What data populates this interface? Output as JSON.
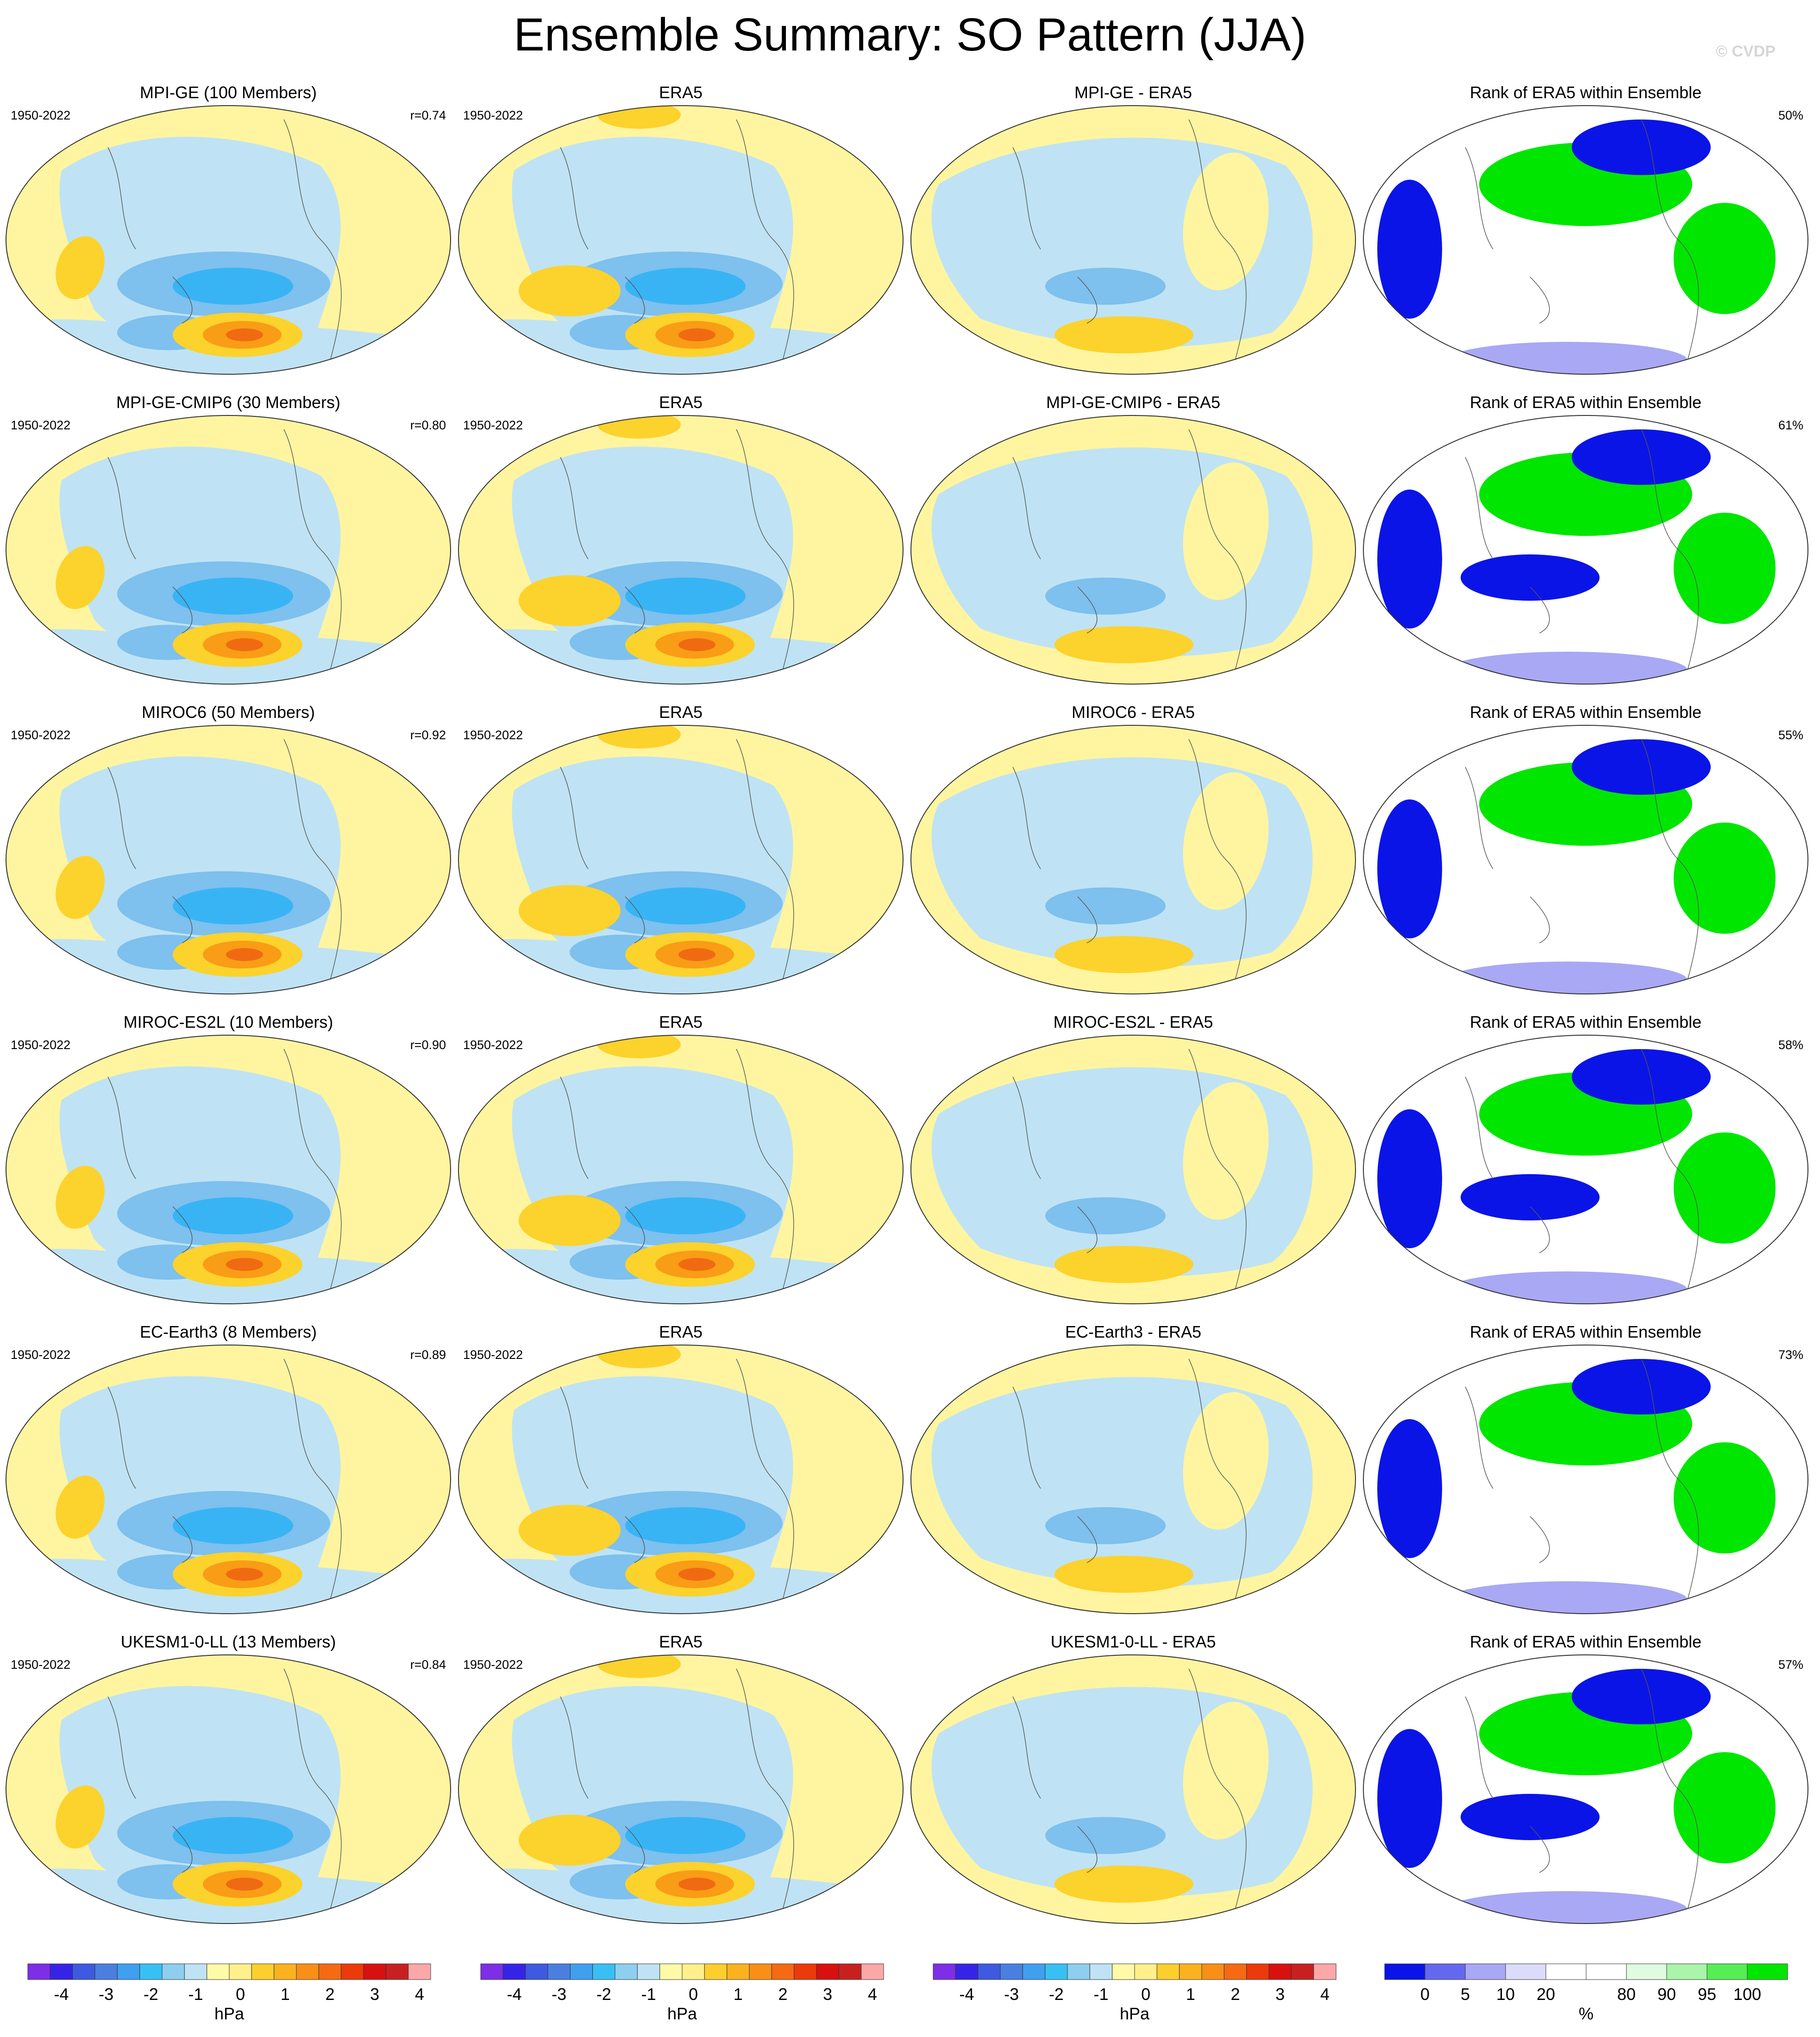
{
  "title": "Ensemble Summary: SO Pattern (JJA)",
  "watermark": "© CVDP",
  "chart_data": {
    "type": "map-grid",
    "rows": [
      {
        "model_title": "MPI-GE (100 Members)",
        "period": "1950-2022",
        "r": "r=0.74",
        "obs_title": "ERA5",
        "obs_period": "1950-2022",
        "diff_title": "MPI-GE - ERA5",
        "rank_title": "Rank of ERA5 within Ensemble",
        "rank_pct": "50%"
      },
      {
        "model_title": "MPI-GE-CMIP6 (30 Members)",
        "period": "1950-2022",
        "r": "r=0.80",
        "obs_title": "ERA5",
        "obs_period": "1950-2022",
        "diff_title": "MPI-GE-CMIP6 - ERA5",
        "rank_title": "Rank of ERA5 within Ensemble",
        "rank_pct": "61%"
      },
      {
        "model_title": "MIROC6 (50 Members)",
        "period": "1950-2022",
        "r": "r=0.92",
        "obs_title": "ERA5",
        "obs_period": "1950-2022",
        "diff_title": "MIROC6 - ERA5",
        "rank_title": "Rank of ERA5 within Ensemble",
        "rank_pct": "55%"
      },
      {
        "model_title": "MIROC-ES2L (10 Members)",
        "period": "1950-2022",
        "r": "r=0.90",
        "obs_title": "ERA5",
        "obs_period": "1950-2022",
        "diff_title": "MIROC-ES2L - ERA5",
        "rank_title": "Rank of ERA5 within Ensemble",
        "rank_pct": "58%"
      },
      {
        "model_title": "EC-Earth3 (8 Members)",
        "period": "1950-2022",
        "r": "r=0.89",
        "obs_title": "ERA5",
        "obs_period": "1950-2022",
        "diff_title": "EC-Earth3 - ERA5",
        "rank_title": "Rank of ERA5 within Ensemble",
        "rank_pct": "73%"
      },
      {
        "model_title": "UKESM1-0-LL (13 Members)",
        "period": "1950-2022",
        "r": "r=0.84",
        "obs_title": "ERA5",
        "obs_period": "1950-2022",
        "diff_title": "UKESM1-0-LL - ERA5",
        "rank_title": "Rank of ERA5 within Ensemble",
        "rank_pct": "57%"
      }
    ],
    "hpa_colorbar": {
      "colors": [
        "#7d2ee6",
        "#3524e8",
        "#3d5ae0",
        "#4a7fe0",
        "#3fa0f0",
        "#38c0f5",
        "#8ecff0",
        "#bfe3f4",
        "#fffaa8",
        "#fff08c",
        "#fccf2c",
        "#fbb21e",
        "#f98f16",
        "#f56a12",
        "#ec3a0a",
        "#d81010",
        "#c82020",
        "#fca8a8"
      ],
      "ticks": [
        "-4",
        "-3",
        "-2",
        "-1",
        "0",
        "1",
        "2",
        "3",
        "4"
      ],
      "unit": "hPa"
    },
    "rank_colorbar": {
      "colors": [
        "#0a14e6",
        "#6468ee",
        "#a8a8f5",
        "#dcdcfa",
        "#ffffff",
        "#ffffff",
        "#e0fbe0",
        "#aaf5aa",
        "#55ee55",
        "#00e600"
      ],
      "ticks": [
        "0",
        "5",
        "10",
        "20",
        "80",
        "90",
        "95",
        "100"
      ],
      "unit": "%"
    },
    "contour_colors": {
      "blue_deep": "#38b4f5",
      "blue_mid": "#7ec0ee",
      "blue_light": "#bfe3f4",
      "yellow_light": "#fff5a0",
      "yellow": "#fcd22c",
      "orange": "#f99c16",
      "orange_deep": "#f06a12",
      "rank_blue": "#0a14e6",
      "rank_green": "#00e600"
    }
  }
}
